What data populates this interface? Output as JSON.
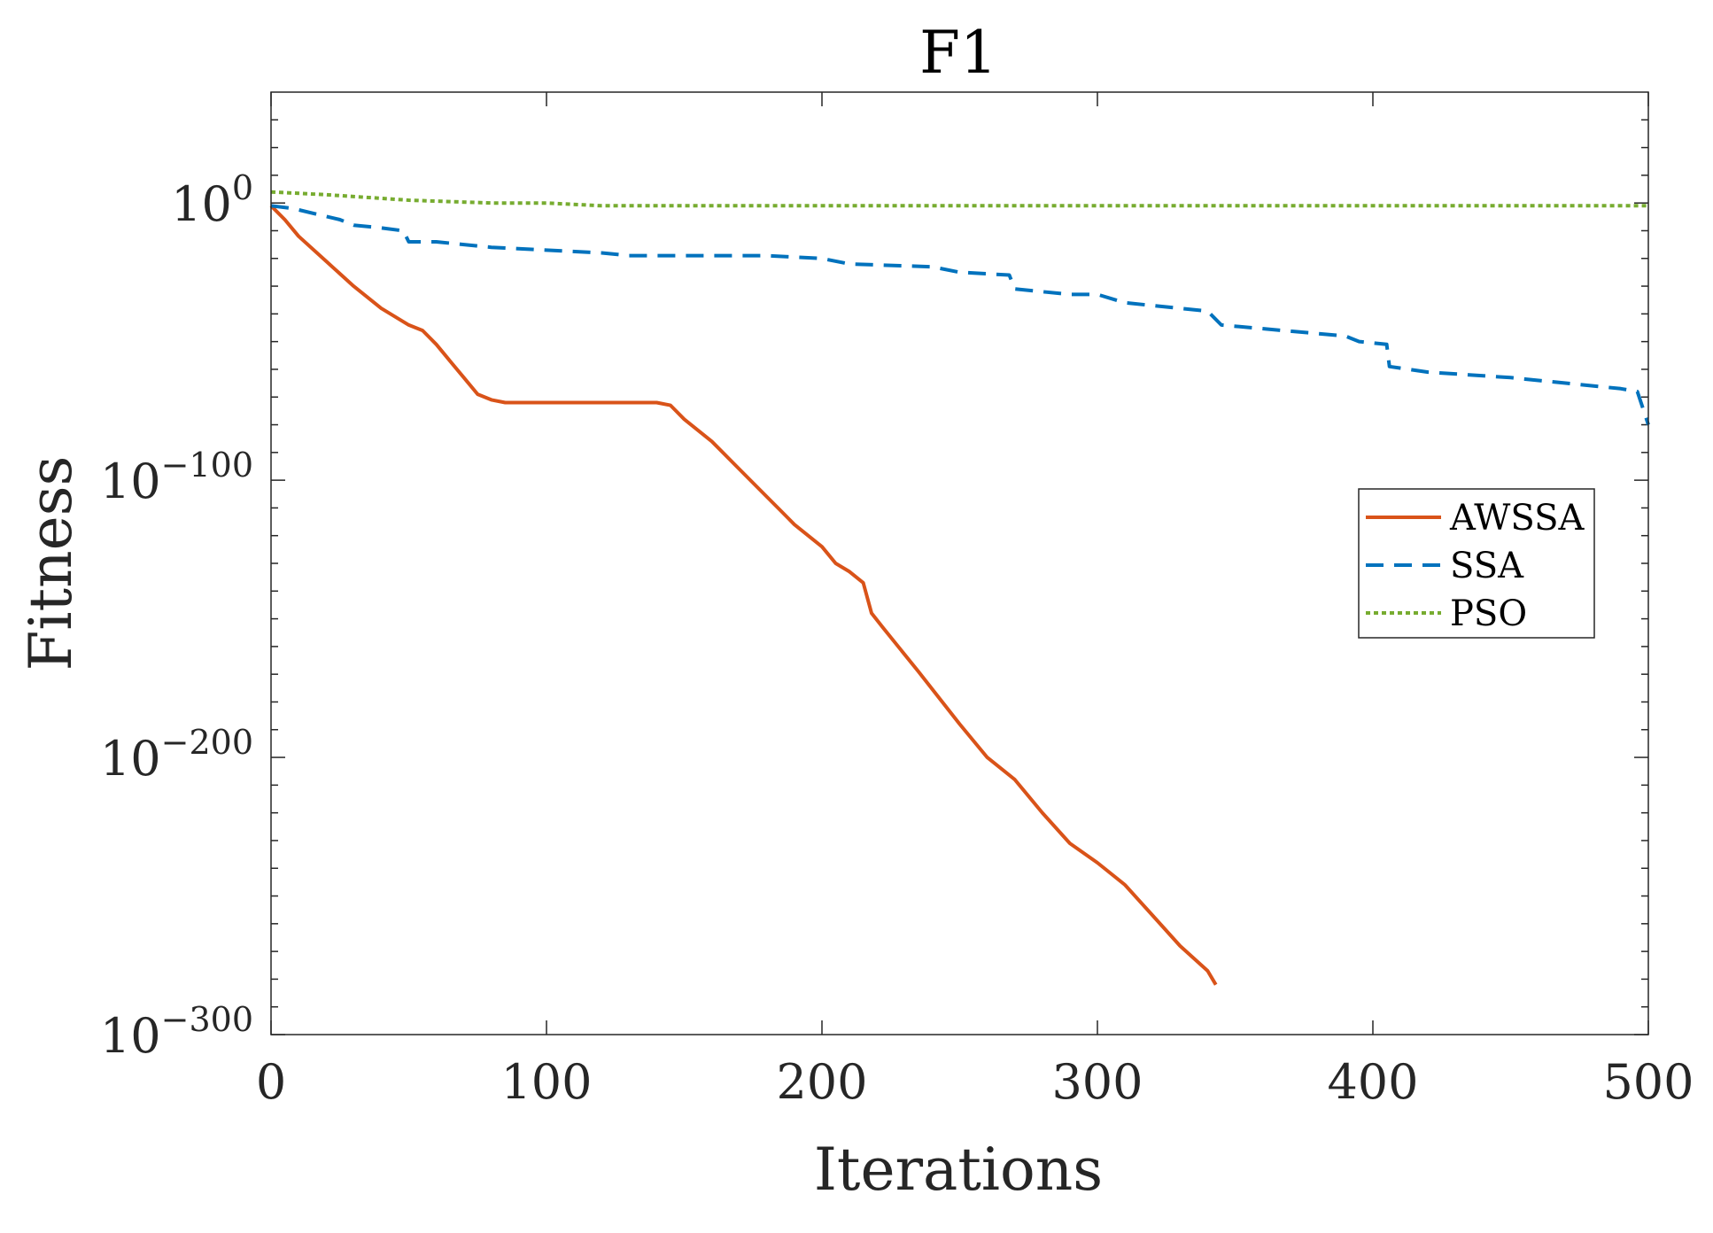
{
  "chart_data": {
    "type": "line",
    "title": "F1",
    "xlabel": "Iterations",
    "ylabel": "Fitness",
    "xlim": [
      0,
      500
    ],
    "ylim_log10": [
      -300,
      40
    ],
    "y_scale": "log",
    "x_ticks": [
      0,
      100,
      200,
      300,
      400,
      500
    ],
    "x_tick_labels": [
      "0",
      "100",
      "200",
      "300",
      "400",
      "500"
    ],
    "y_ticks_log10": [
      0,
      -100,
      -200,
      -300
    ],
    "y_tick_labels": [
      {
        "base": "10",
        "exp": "0"
      },
      {
        "base": "10",
        "exp": "−100"
      },
      {
        "base": "10",
        "exp": "−200"
      },
      {
        "base": "10",
        "exp": "−300"
      }
    ],
    "y_minor_ticks_log10": [
      30,
      20,
      10,
      -10,
      -20,
      -30,
      -40,
      -50,
      -60,
      -70,
      -80,
      -90,
      -110,
      -120,
      -130,
      -140,
      -150,
      -160,
      -170,
      -180,
      -190,
      -210,
      -220,
      -230,
      -240,
      -250,
      -260,
      -270,
      -280,
      -290
    ],
    "legend_position": "center-right",
    "legend": [
      "AWSSA",
      "SSA",
      "PSO"
    ],
    "series": [
      {
        "name": "AWSSA",
        "color": "#D95319",
        "dash": "solid",
        "x": [
          0,
          5,
          10,
          20,
          30,
          40,
          50,
          55,
          60,
          65,
          70,
          75,
          80,
          85,
          100,
          120,
          140,
          145,
          150,
          160,
          170,
          180,
          185,
          190,
          200,
          205,
          210,
          215,
          218,
          222,
          235,
          250,
          260,
          270,
          280,
          290,
          300,
          310,
          320,
          330,
          340,
          343
        ],
        "log10y": [
          -1,
          -6,
          -12,
          -21,
          -30,
          -38,
          -44,
          -46,
          -51,
          -57,
          -63,
          -69,
          -71,
          -72,
          -72,
          -72,
          -72,
          -73,
          -78,
          -86,
          -96,
          -106,
          -111,
          -116,
          -124,
          -130,
          -133,
          -137,
          -148,
          -153,
          -169,
          -188,
          -200,
          -208,
          -220,
          -231,
          -238,
          -246,
          -257,
          -268,
          -277,
          -282
        ]
      },
      {
        "name": "SSA",
        "color": "#0072BD",
        "dash": "dashed",
        "x": [
          0,
          8,
          25,
          30,
          40,
          48,
          50,
          60,
          70,
          80,
          100,
          120,
          130,
          160,
          180,
          200,
          210,
          240,
          250,
          268,
          270,
          290,
          300,
          310,
          340,
          345,
          390,
          395,
          405,
          406,
          420,
          450,
          490,
          496,
          500
        ],
        "log10y": [
          -1,
          -2,
          -6,
          -8,
          -9,
          -10,
          -14,
          -14,
          -15,
          -16,
          -17,
          -18,
          -19,
          -19,
          -19,
          -20,
          -22,
          -23,
          -25,
          -26,
          -31,
          -33,
          -33,
          -36,
          -39,
          -44,
          -48,
          -50,
          -51,
          -59,
          -61,
          -63,
          -67,
          -68,
          -80
        ]
      },
      {
        "name": "PSO",
        "color": "#77AC30",
        "dash": "dotted",
        "x": [
          0,
          20,
          50,
          80,
          100,
          120,
          150,
          200,
          300,
          400,
          499,
          500
        ],
        "log10y": [
          4,
          3,
          1,
          0,
          0,
          -1,
          -1,
          -1,
          -1,
          -1,
          -1,
          -1
        ]
      }
    ]
  }
}
